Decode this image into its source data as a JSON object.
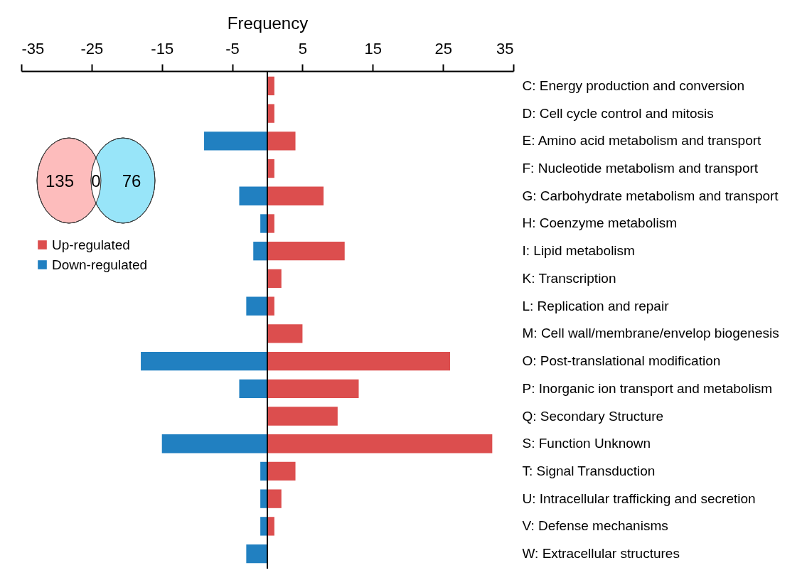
{
  "chart_data": {
    "type": "bar",
    "orientation": "horizontal",
    "xlabel": "Frequency",
    "categories": [
      "C: Energy production and conversion",
      "D: Cell cycle control and mitosis",
      "E: Amino acid metabolism and transport",
      "F: Nucleotide metabolism and transport",
      "G: Carbohydrate metabolism and transport",
      "H: Coenzyme metabolism",
      "I: Lipid metabolism",
      "K: Transcription",
      "L: Replication and repair",
      "M: Cell wall/membrane/envelop biogenesis",
      "O: Post-translational modification",
      "P: Inorganic ion transport and metabolism",
      "Q: Secondary Structure",
      "S: Function Unknown",
      "T: Signal Transduction",
      "U: Intracellular trafficking and secretion",
      "V: Defense mechanisms",
      "W: Extracellular structures"
    ],
    "series": [
      {
        "name": "Up-regulated",
        "color": "#dc4e4e",
        "values": [
          1,
          1,
          4,
          1,
          8,
          1,
          11,
          2,
          1,
          5,
          26,
          13,
          10,
          32,
          4,
          2,
          1,
          null
        ]
      },
      {
        "name": "Down-regulated",
        "color": "#2180c1",
        "values": [
          null,
          null,
          -9,
          null,
          -4,
          -1,
          -2,
          null,
          -3,
          null,
          -18,
          -4,
          null,
          -15,
          -1,
          -1,
          -1,
          -3
        ]
      }
    ],
    "xlim": [
      -35,
      35
    ],
    "xticks": [
      -35,
      -25,
      -15,
      -5,
      5,
      15,
      25,
      35
    ],
    "ref_lines": [
      {
        "axis": "x",
        "value": 0,
        "color": "#000000"
      }
    ],
    "legend": "top left",
    "grid": false,
    "stacked": true,
    "annotations": [
      "135",
      "0",
      "76"
    ]
  }
}
